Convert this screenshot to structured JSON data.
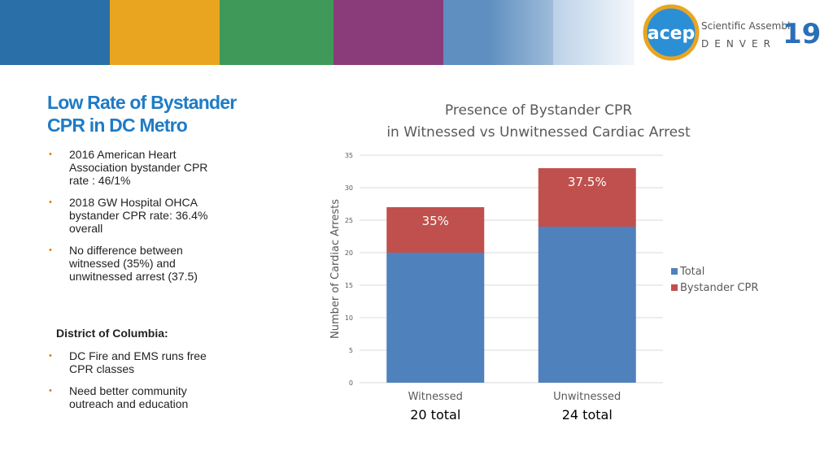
{
  "header": {
    "logo_text": "acep",
    "event": "Scientific Assembly",
    "city": "DENVER",
    "year": "19"
  },
  "slide": {
    "title": "Low Rate of Bystander CPR in DC Metro",
    "bullets": [
      "2016 American Heart Association bystander CPR rate : 46/1%",
      "2018 GW Hospital OHCA bystander CPR rate: 36.4% overall",
      "No difference between witnessed (35%) and unwitnessed arrest (37.5)"
    ],
    "section_heading": "District of Columbia:",
    "section_bullets": [
      "DC Fire and EMS runs free CPR classes",
      "Need better community outreach and education"
    ]
  },
  "chart_data": {
    "type": "stacked_bar",
    "title": "Presence of Bystander CPR",
    "subtitle": "in Witnessed vs Unwitnessed Cardiac Arrest",
    "y_label": "Number of Cardiac Arrests",
    "categories": [
      "Witnessed",
      "Unwitnessed"
    ],
    "category_notes": [
      "20 total",
      "24 total"
    ],
    "series": [
      {
        "name": "Total",
        "color": "#4f81bd",
        "values": [
          20,
          24
        ]
      },
      {
        "name": "Bystander CPR",
        "color": "#c0504d",
        "values": [
          7,
          9
        ]
      }
    ],
    "annotations": [
      "35%",
      "37.5%"
    ],
    "ylim": [
      0,
      35
    ],
    "yticks": [
      0,
      5,
      10,
      15,
      20,
      25,
      30,
      35
    ],
    "grid": true,
    "legend": "right"
  }
}
